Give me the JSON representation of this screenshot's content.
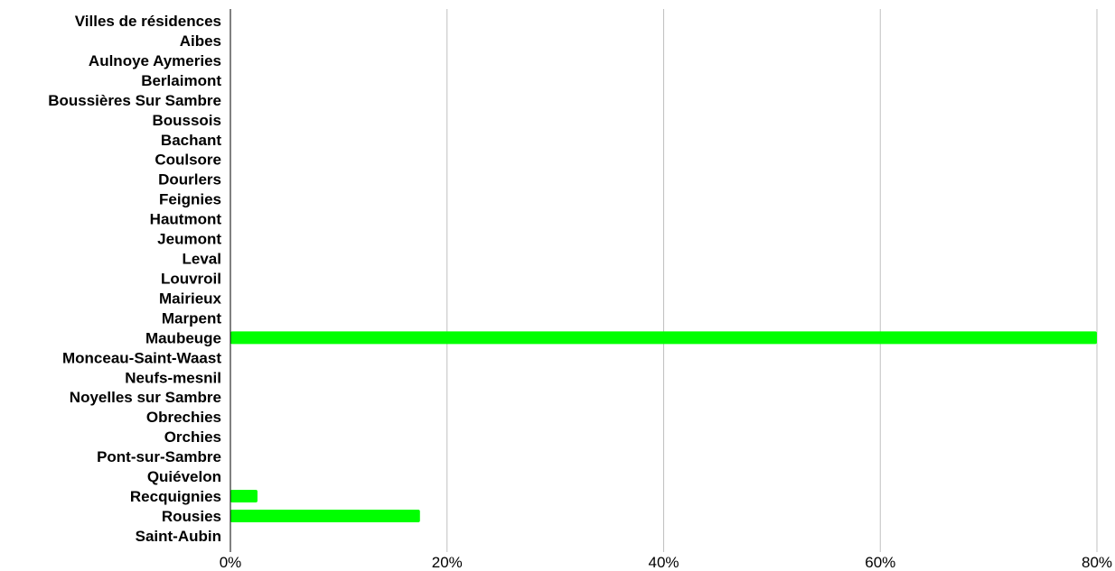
{
  "chart_data": {
    "type": "bar",
    "orientation": "horizontal",
    "categories": [
      "Villes de résidences",
      "Aibes",
      "Aulnoye Aymeries",
      "Berlaimont",
      "Boussières Sur Sambre",
      "Boussois",
      "Bachant",
      "Coulsore",
      "Dourlers",
      "Feignies",
      "Hautmont",
      "Jeumont",
      "Leval",
      "Louvroil",
      "Mairieux",
      "Marpent",
      "Maubeuge",
      "Monceau-Saint-Waast",
      "Neufs-mesnil",
      "Noyelles sur Sambre",
      "Obrechies",
      "Orchies",
      "Pont-sur-Sambre",
      "Quiévelon",
      "Recquignies",
      "Rousies",
      "Saint-Aubin"
    ],
    "values": [
      0,
      0,
      0,
      0,
      0,
      0,
      0,
      0,
      0,
      0,
      0,
      0,
      0,
      0,
      0,
      0,
      0.8,
      0,
      0,
      0,
      0,
      0,
      0,
      0,
      0.025,
      0.175,
      0
    ],
    "xlim": [
      0,
      0.8
    ],
    "x_ticks": [
      0,
      0.2,
      0.4,
      0.6,
      0.8
    ],
    "x_tick_labels": [
      "0%",
      "20%",
      "40%",
      "60%",
      "80%"
    ],
    "bar_color": "#00ff00",
    "grid": true,
    "grid_color": "#c0c0c0",
    "title": "",
    "xlabel": "",
    "ylabel": ""
  }
}
